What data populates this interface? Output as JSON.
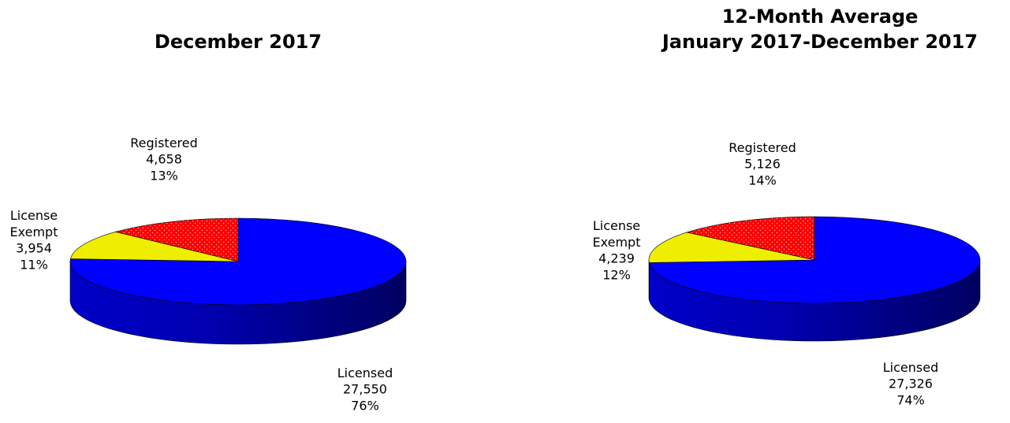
{
  "chart_data": [
    {
      "type": "pie",
      "title": "December 2017",
      "categories": [
        "Licensed",
        "License Exempt",
        "Registered"
      ],
      "values": [
        27550,
        3954,
        4658
      ],
      "value_labels": [
        "27,550",
        "3,954",
        "4,658"
      ],
      "percents": [
        76,
        11,
        13
      ],
      "percent_labels": [
        "76%",
        "11%",
        "13%"
      ],
      "colors": [
        "#0000ff",
        "#eeee00",
        "#ff0000"
      ]
    },
    {
      "type": "pie",
      "title": "12-Month Average",
      "subtitle": "January 2017-December 2017",
      "categories": [
        "Licensed",
        "License Exempt",
        "Registered"
      ],
      "values": [
        27326,
        4239,
        5126
      ],
      "value_labels": [
        "27,326",
        "4,239",
        "5,126"
      ],
      "percents": [
        74,
        12,
        14
      ],
      "percent_labels": [
        "74%",
        "12%",
        "14%"
      ],
      "colors": [
        "#0000ff",
        "#eeee00",
        "#ff0000"
      ]
    }
  ]
}
